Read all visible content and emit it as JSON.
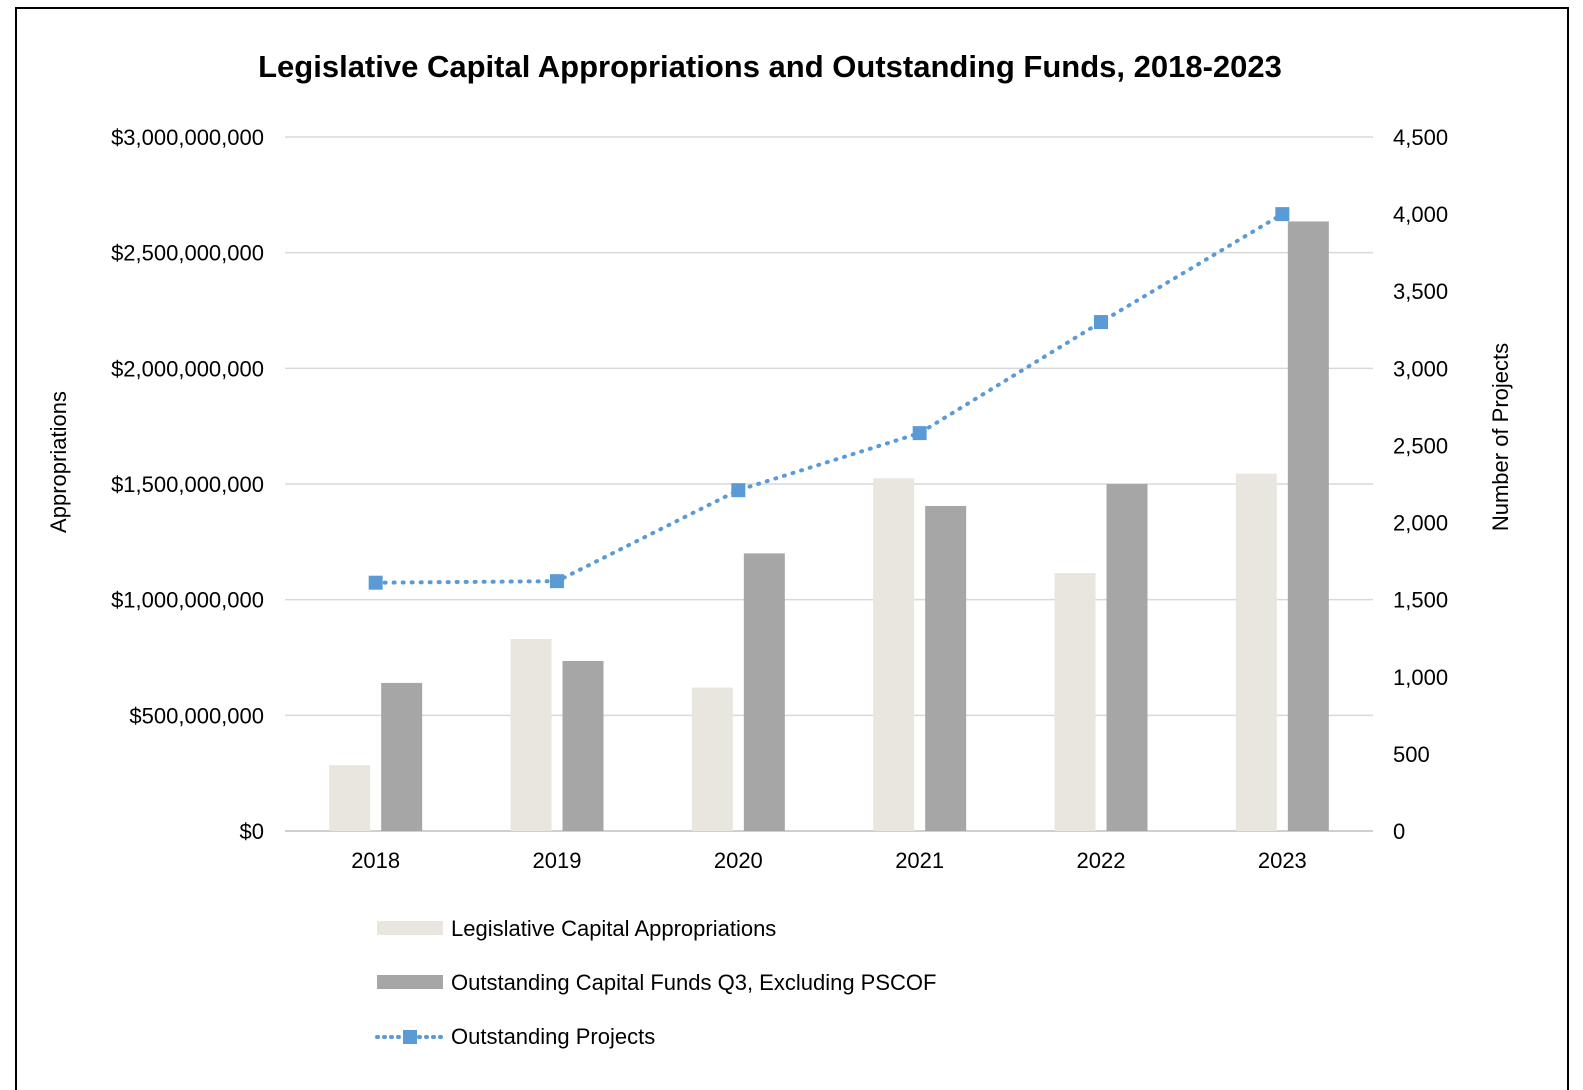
{
  "chart_data": {
    "type": "bar",
    "title": "Legislative Capital Appropriations and Outstanding Funds, 2018-2023",
    "categories": [
      "2018",
      "2019",
      "2020",
      "2021",
      "2022",
      "2023"
    ],
    "y_left": {
      "label": "Appropriations",
      "range": [
        0,
        3000000000
      ],
      "ticks": [
        0,
        500000000,
        1000000000,
        1500000000,
        2000000000,
        2500000000,
        3000000000
      ],
      "tick_labels": [
        "$0",
        "$500,000,000",
        "$1,000,000,000",
        "$1,500,000,000",
        "$2,000,000,000",
        "$2,500,000,000",
        "$3,000,000,000"
      ]
    },
    "y_right": {
      "label": "Number of Projects",
      "range": [
        0,
        4500
      ],
      "ticks": [
        0,
        500,
        1000,
        1500,
        2000,
        2500,
        3000,
        3500,
        4000,
        4500
      ],
      "tick_labels": [
        "0",
        "500",
        "1,000",
        "1,500",
        "2,000",
        "2,500",
        "3,000",
        "3,500",
        "4,000",
        "4,500"
      ]
    },
    "grid": true,
    "legend_position": "bottom",
    "series": [
      {
        "name": "Legislative Capital Appropriations",
        "type": "bar",
        "axis": "left",
        "color": "#E8E6DF",
        "values": [
          285000000,
          830000000,
          620000000,
          1525000000,
          1115000000,
          1545000000
        ]
      },
      {
        "name": "Outstanding Capital Funds Q3, Excluding PSCOF",
        "type": "bar",
        "axis": "left",
        "color": "#A6A6A6",
        "values": [
          640000000,
          735000000,
          1200000000,
          1405000000,
          1500000000,
          2635000000
        ]
      },
      {
        "name": "Outstanding Projects",
        "type": "line",
        "style": "dotted",
        "marker": "square",
        "axis": "right",
        "color": "#5B9BD5",
        "values": [
          1610,
          1620,
          2210,
          2580,
          3300,
          4000
        ]
      }
    ]
  }
}
